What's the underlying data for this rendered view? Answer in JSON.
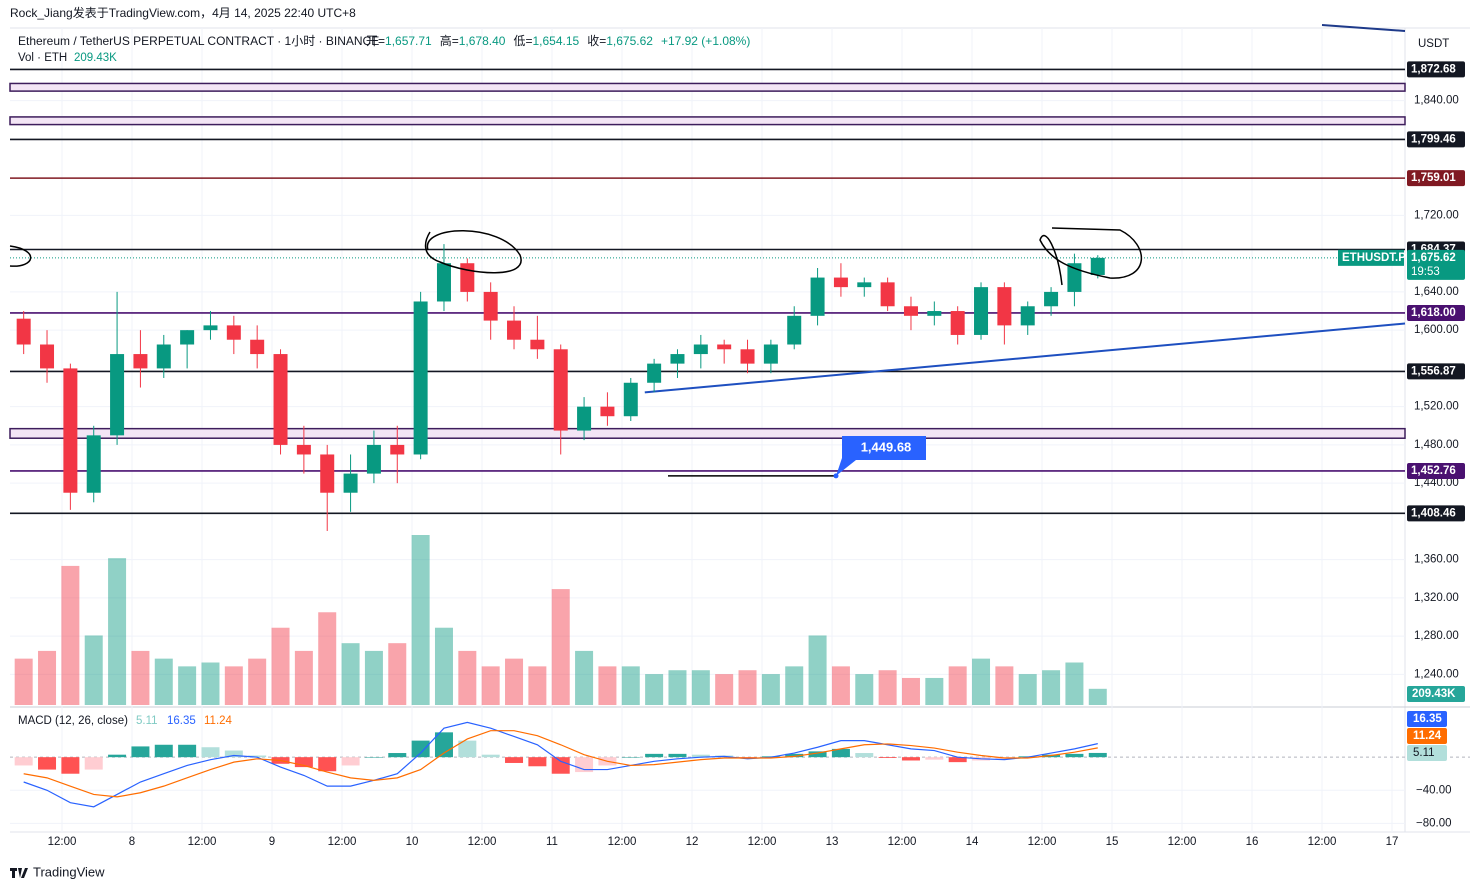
{
  "header": {
    "credit": "Rock_Jiang发表于TradingView.com，4月 14, 2025 22:40 UTC+8",
    "symbol": "Ethereum / TetherUS PERPETUAL CONTRACT · 1小时 · BINANCE",
    "ohlc": [
      {
        "key": "开=",
        "value": "1,657.71"
      },
      {
        "key": "高=",
        "value": "1,678.40"
      },
      {
        "key": "低=",
        "value": "1,654.15"
      },
      {
        "key": "收=",
        "value": "1,675.62"
      }
    ],
    "change": "+17.92 (+1.08%)",
    "currency": "USDT",
    "footer": "TradingView"
  },
  "chart_data": {
    "type": "candlestick",
    "ylim": [
      1208,
      1916
    ],
    "yticks": [
      {
        "value": 1840,
        "label": "1,840.00"
      },
      {
        "value": 1720,
        "label": "1,720.00"
      },
      {
        "value": 1640,
        "label": "1,640.00"
      },
      {
        "value": 1600,
        "label": "1,600.00"
      },
      {
        "value": 1520,
        "label": "1,520.00"
      },
      {
        "value": 1480,
        "label": "1,480.00"
      },
      {
        "value": 1440,
        "label": "1,440.00"
      },
      {
        "value": 1360,
        "label": "1,360.00"
      },
      {
        "value": 1320,
        "label": "1,320.00"
      },
      {
        "value": 1280,
        "label": "1,280.00"
      },
      {
        "value": 1240,
        "label": "1,240.00"
      }
    ],
    "xticks": [
      "12:00",
      "8",
      "12:00",
      "9",
      "12:00",
      "10",
      "12:00",
      "11",
      "12:00",
      "12",
      "12:00",
      "13",
      "12:00",
      "14",
      "12:00",
      "15",
      "12:00",
      "16",
      "12:00",
      "17"
    ],
    "up_color": "#089981",
    "down_color": "#f23645",
    "grid": true,
    "open": [
      1612,
      1585,
      1560,
      1430,
      1490,
      1575,
      1560,
      1585,
      1600,
      1605,
      1590,
      1575,
      1480,
      1470,
      1430,
      1450,
      1480,
      1470,
      1630,
      1670,
      1640,
      1610,
      1590,
      1580,
      1495,
      1520,
      1510,
      1545,
      1565,
      1575,
      1585,
      1580,
      1565,
      1585,
      1615,
      1655,
      1645,
      1650,
      1625,
      1615,
      1620,
      1595,
      1645,
      1605,
      1625,
      1640,
      1657.71
    ],
    "high": [
      1620,
      1600,
      1565,
      1500,
      1640,
      1600,
      1595,
      1600,
      1620,
      1615,
      1605,
      1580,
      1500,
      1480,
      1470,
      1495,
      1500,
      1640,
      1690,
      1675,
      1650,
      1625,
      1615,
      1585,
      1530,
      1535,
      1550,
      1570,
      1580,
      1595,
      1590,
      1590,
      1590,
      1625,
      1665,
      1670,
      1655,
      1655,
      1635,
      1630,
      1625,
      1650,
      1650,
      1630,
      1645,
      1680,
      1678.4
    ],
    "low": [
      1575,
      1545,
      1412,
      1420,
      1480,
      1540,
      1550,
      1560,
      1590,
      1575,
      1560,
      1470,
      1450,
      1390,
      1410,
      1440,
      1440,
      1465,
      1620,
      1630,
      1590,
      1580,
      1570,
      1470,
      1485,
      1500,
      1505,
      1535,
      1550,
      1560,
      1565,
      1555,
      1555,
      1580,
      1605,
      1635,
      1635,
      1620,
      1600,
      1605,
      1585,
      1590,
      1585,
      1595,
      1615,
      1625,
      1654.15
    ],
    "close": [
      1585,
      1560,
      1430,
      1490,
      1575,
      1560,
      1585,
      1600,
      1605,
      1590,
      1575,
      1480,
      1470,
      1430,
      1450,
      1480,
      1470,
      1630,
      1670,
      1640,
      1610,
      1590,
      1580,
      1495,
      1520,
      1510,
      1545,
      1565,
      1575,
      1585,
      1580,
      1565,
      1585,
      1615,
      1655,
      1645,
      1650,
      1625,
      1615,
      1620,
      1595,
      1645,
      1605,
      1625,
      1640,
      1670,
      1675.62
    ],
    "volume": {
      "name": "Vol · ETH",
      "last_label": "209.43K",
      "values": [
        600,
        700,
        1800,
        900,
        1900,
        700,
        600,
        500,
        550,
        500,
        600,
        1000,
        700,
        1200,
        800,
        700,
        800,
        2200,
        1000,
        700,
        500,
        600,
        500,
        1500,
        700,
        500,
        500,
        400,
        450,
        450,
        400,
        450,
        400,
        500,
        900,
        500,
        400,
        450,
        350,
        350,
        500,
        600,
        500,
        400,
        450,
        550,
        209.43
      ]
    },
    "levels": [
      {
        "value": 1872.68,
        "label": "1,872.68",
        "color": "#131722"
      },
      {
        "value": 1799.46,
        "label": "1,799.46",
        "color": "#131722"
      },
      {
        "value": 1759.01,
        "label": "1,759.01",
        "color": "#801922"
      },
      {
        "value": 1684.37,
        "label": "1,684.37",
        "color": "#131722"
      },
      {
        "value": 1618,
        "label": "1,618.00",
        "color": "#4a1170"
      },
      {
        "value": 1556.87,
        "label": "1,556.87",
        "color": "#131722"
      },
      {
        "value": 1452.76,
        "label": "1,452.76",
        "color": "#4a1170"
      },
      {
        "value": 1408.46,
        "label": "1,408.46",
        "color": "#131722"
      }
    ],
    "bands": [
      [
        1850,
        1858
      ],
      [
        1815,
        1823
      ],
      [
        1487,
        1497
      ]
    ],
    "last_price": {
      "value": 1675.62,
      "label": "1,675.62",
      "symbol": "ETHUSDT.P",
      "countdown": "19:53"
    },
    "annotation": {
      "value": 1449.68,
      "label": "1,449.68"
    },
    "trendline": {
      "x": [
        26.6,
        59.2
      ],
      "y": [
        1535,
        1607
      ]
    },
    "macd": {
      "title": "MACD (12, 26, close)",
      "ylim": [
        -88,
        57
      ],
      "yticks": [
        {
          "value": -40,
          "label": "−40.00"
        },
        {
          "value": -80,
          "label": "−80.00"
        }
      ],
      "histogram": [
        -10,
        -15,
        -20,
        -15,
        3,
        13,
        15,
        15,
        12,
        8,
        2,
        -8,
        -12,
        -17,
        -10,
        0,
        5,
        20,
        30,
        20,
        3,
        -7,
        -11,
        -20,
        -18,
        -10,
        0,
        4,
        4,
        3,
        2,
        -1,
        1,
        4,
        7,
        10,
        5,
        -1,
        -4,
        -3,
        -6,
        -4,
        -2,
        1,
        3,
        4,
        5.11
      ],
      "macd": [
        -30,
        -40,
        -55,
        -60,
        -45,
        -30,
        -20,
        -10,
        -3,
        2,
        0,
        -12,
        -22,
        -35,
        -35,
        -28,
        -20,
        5,
        35,
        42,
        35,
        25,
        15,
        -5,
        -15,
        -15,
        -10,
        -5,
        -2,
        0,
        1,
        -2,
        0,
        5,
        12,
        20,
        20,
        15,
        10,
        8,
        0,
        -2,
        -3,
        0,
        5,
        10,
        16.35
      ],
      "signal": [
        -20,
        -25,
        -35,
        -45,
        -48,
        -43,
        -35,
        -25,
        -15,
        -6,
        -2,
        -4,
        -10,
        -18,
        -25,
        -28,
        -25,
        -15,
        5,
        22,
        32,
        32,
        26,
        15,
        3,
        -5,
        -10,
        -9,
        -6,
        -3,
        -1,
        -1,
        -1,
        1,
        5,
        10,
        15,
        16,
        14,
        11,
        6,
        2,
        -1,
        -1,
        2,
        6,
        11.24
      ],
      "macd_color": "#2962ff",
      "signal_color": "#ff6d00"
    }
  }
}
